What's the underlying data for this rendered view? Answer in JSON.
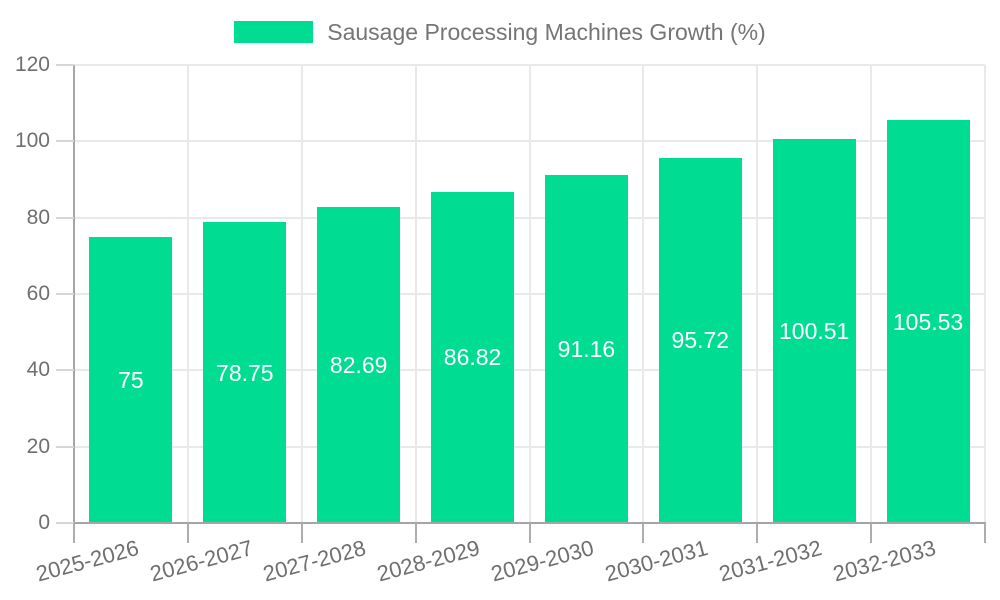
{
  "legend": {
    "label": "Sausage Processing Machines Growth (%)"
  },
  "chart_data": {
    "type": "bar",
    "title": "Sausage Processing Machines Growth (%)",
    "series_name": "Sausage Processing Machines Growth (%)",
    "categories": [
      "2025-2026",
      "2026-2027",
      "2027-2028",
      "2028-2029",
      "2029-2030",
      "2030-2031",
      "2031-2032",
      "2032-2033"
    ],
    "values": [
      75,
      78.75,
      82.69,
      86.82,
      91.16,
      95.72,
      100.51,
      105.53
    ],
    "value_labels": [
      "75",
      "78.75",
      "82.69",
      "86.82",
      "91.16",
      "95.72",
      "100.51",
      "105.53"
    ],
    "xlabel": "",
    "ylabel": "",
    "ylim": [
      0,
      120
    ],
    "yticks": [
      0,
      20,
      40,
      60,
      80,
      100,
      120
    ],
    "grid": true,
    "legend_position": "top",
    "colors": {
      "bar": "#00DC92",
      "value_label": "#ffffff",
      "axis_line": "#A5A5A5",
      "gridline": "#E9E9E9",
      "tick_label": "#6F6F6F",
      "legend_text": "#757575",
      "background": "#ffffff"
    }
  }
}
